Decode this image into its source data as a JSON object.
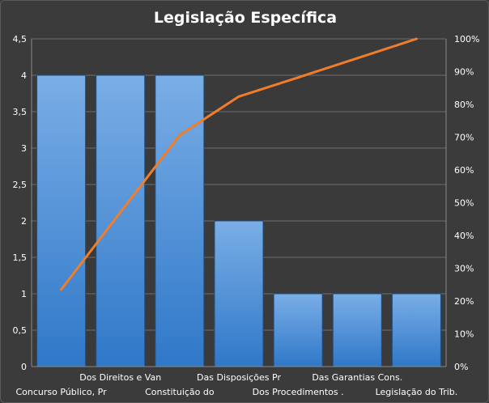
{
  "chart_data": {
    "type": "bar",
    "title": "Legislação  Específica",
    "categories": [
      "Concurso Público, Pr",
      "Dos Direitos e Van",
      "Constituição do",
      "Das Disposições Pr",
      "Dos Procedimentos .",
      "Das Garantias Cons.",
      "Legislação do Trib."
    ],
    "values": [
      4,
      4,
      4,
      2,
      1,
      1,
      1
    ],
    "cumulative_percent": [
      23.5,
      47.1,
      70.6,
      82.4,
      88.2,
      94.1,
      100
    ],
    "ylim": [
      0,
      4.5
    ],
    "y_ticks": [
      "0",
      "0,5",
      "1",
      "1,5",
      "2",
      "2,5",
      "3",
      "3,5",
      "4",
      "4,5"
    ],
    "y2lim": [
      0,
      100
    ],
    "y2_ticks": [
      "0%",
      "10%",
      "20%",
      "30%",
      "40%",
      "50%",
      "60%",
      "70%",
      "80%",
      "90%",
      "100%"
    ],
    "xlabel": "",
    "ylabel": "",
    "grid": true,
    "legend": "none",
    "colors": {
      "bar_top": "#7aaee6",
      "bar_bottom": "#2f78c8",
      "line": "#f07d2a",
      "grid": "#6e6e6e",
      "plot_bg": "#3a3a3a"
    }
  }
}
